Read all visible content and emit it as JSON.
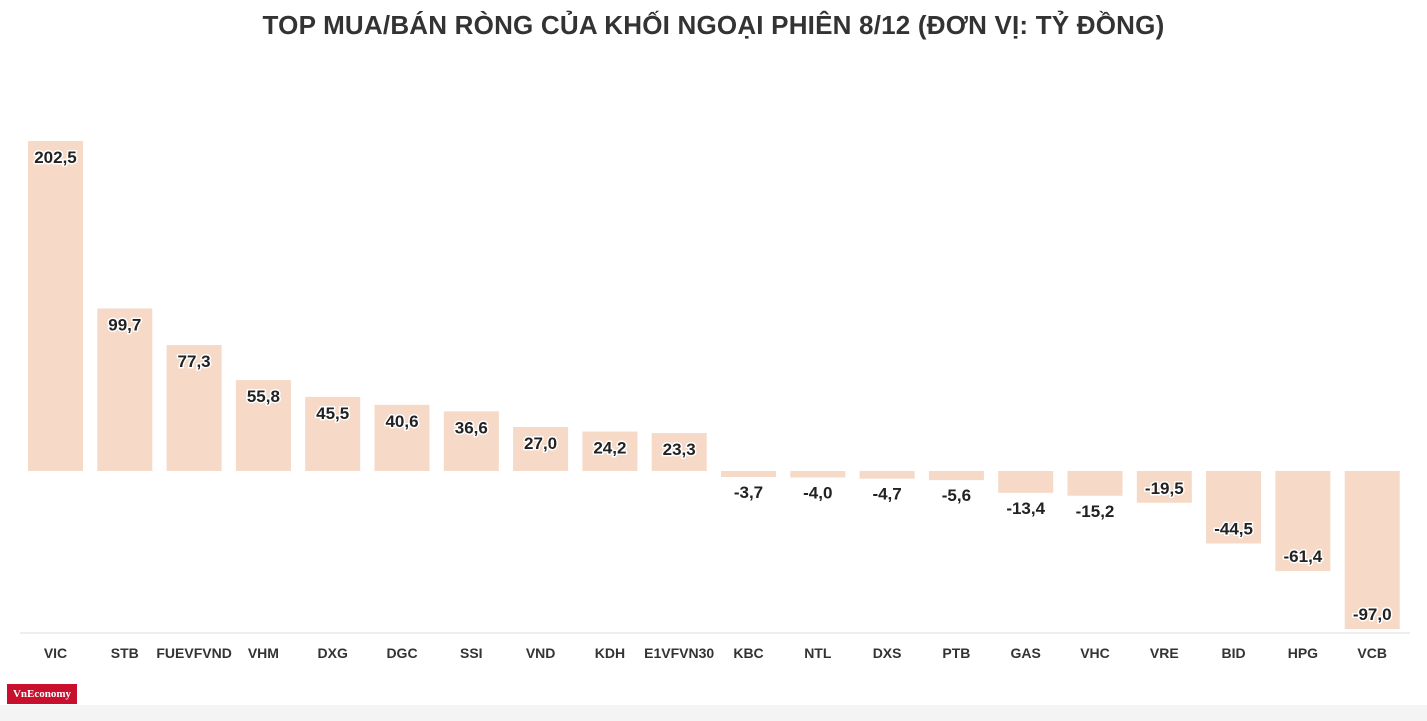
{
  "chart_data": {
    "type": "bar",
    "title": "TOP MUA/BÁN RÒNG CỦA KHỐI NGOẠI PHIÊN 8/12 (ĐƠN VỊ: TỶ ĐỒNG)",
    "categories": [
      "VIC",
      "STB",
      "FUEVFVND",
      "VHM",
      "DXG",
      "DGC",
      "SSI",
      "VND",
      "KDH",
      "E1VFVN30",
      "KBC",
      "NTL",
      "DXS",
      "PTB",
      "GAS",
      "VHC",
      "VRE",
      "BID",
      "HPG",
      "VCB"
    ],
    "values": [
      202.5,
      99.7,
      77.3,
      55.8,
      45.5,
      40.6,
      36.6,
      27.0,
      24.2,
      23.3,
      -3.7,
      -4.0,
      -4.7,
      -5.6,
      -13.4,
      -15.2,
      -19.5,
      -44.5,
      -61.4,
      -97.0
    ],
    "value_labels": [
      "202,5",
      "99,7",
      "77,3",
      "55,8",
      "45,5",
      "40,6",
      "36,6",
      "27,0",
      "24,2",
      "23,3",
      "-3,7",
      "-4,0",
      "-4,7",
      "-5,6",
      "-13,4",
      "-15,2",
      "-19,5",
      "-44,5",
      "-61,4",
      "-97,0"
    ],
    "xlabel": "",
    "ylabel": "",
    "ylim": [
      -100,
      205
    ],
    "grid": false,
    "bar_color": "#f6d9c6"
  },
  "brand": {
    "logo_text": "VnEconomy",
    "color": "#c8102e"
  }
}
